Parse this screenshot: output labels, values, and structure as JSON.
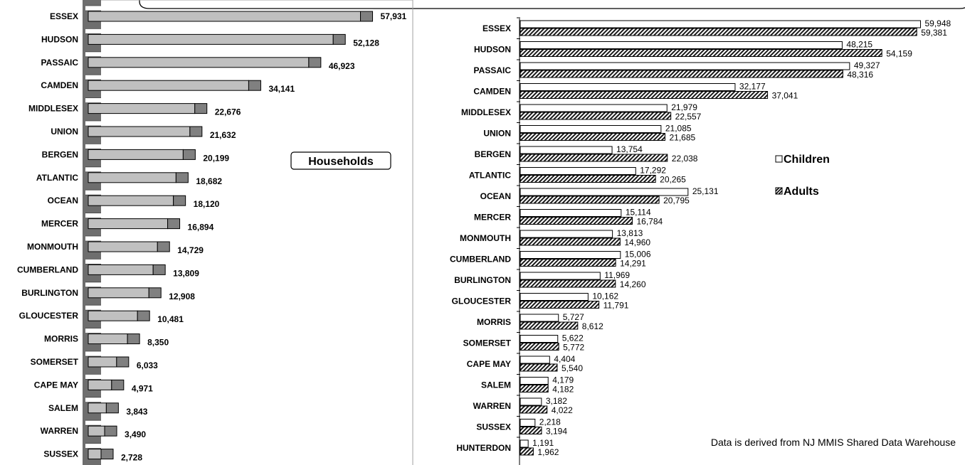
{
  "chart_data": [
    {
      "type": "bar",
      "orientation": "horizontal",
      "title_box": "Households",
      "categories": [
        "ESSEX",
        "HUDSON",
        "PASSAIC",
        "CAMDEN",
        "MIDDLESEX",
        "UNION",
        "BERGEN",
        "ATLANTIC",
        "OCEAN",
        "MERCER",
        "MONMOUTH",
        "CUMBERLAND",
        "BURLINGTON",
        "GLOUCESTER",
        "MORRIS",
        "SOMERSET",
        "CAPE MAY",
        "SALEM",
        "WARREN",
        "SUSSEX"
      ],
      "values": [
        57931,
        52128,
        46923,
        34141,
        22676,
        21632,
        20199,
        18682,
        18120,
        16894,
        14729,
        13809,
        12908,
        10481,
        8350,
        6033,
        4971,
        3843,
        3490,
        2728
      ],
      "value_labels": [
        "57,931",
        "52,128",
        "46,923",
        "34,141",
        "22,676",
        "21,632",
        "20,199",
        "18,682",
        "18,120",
        "16,894",
        "14,729",
        "13,809",
        "12,908",
        "10,481",
        "8,350",
        "6,033",
        "4,971",
        "3,843",
        "3,490",
        "2,728"
      ],
      "xlim": [
        0,
        63000
      ],
      "colors": {
        "bar": "#c0c0c0",
        "cap": "#808080",
        "wall": "#6e6e6e"
      }
    },
    {
      "type": "bar",
      "orientation": "horizontal",
      "categories": [
        "ESSEX",
        "HUDSON",
        "PASSAIC",
        "CAMDEN",
        "MIDDLESEX",
        "UNION",
        "BERGEN",
        "ATLANTIC",
        "OCEAN",
        "MERCER",
        "MONMOUTH",
        "CUMBERLAND",
        "BURLINGTON",
        "GLOUCESTER",
        "MORRIS",
        "SOMERSET",
        "CAPE MAY",
        "SALEM",
        "WARREN",
        "SUSSEX",
        "HUNTERDON"
      ],
      "series": [
        {
          "name": "Children",
          "values": [
            59948,
            48215,
            49327,
            32177,
            21979,
            21085,
            13754,
            17292,
            25131,
            15114,
            13813,
            15006,
            11969,
            10162,
            5727,
            5622,
            4404,
            4179,
            3182,
            2218,
            1191
          ],
          "value_labels": [
            "59,948",
            "48,215",
            "49,327",
            "32,177",
            "21,979",
            "21,085",
            "13,754",
            "17,292",
            "25,131",
            "15,114",
            "13,813",
            "15,006",
            "11,969",
            "10,162",
            "5,727",
            "5,622",
            "4,404",
            "4,179",
            "3,182",
            "2,218",
            "1,191"
          ]
        },
        {
          "name": "Adults",
          "values": [
            59381,
            54159,
            48316,
            37041,
            22557,
            21685,
            22038,
            20265,
            20795,
            16784,
            14960,
            14291,
            14260,
            11791,
            8612,
            5772,
            5540,
            4182,
            4022,
            3194,
            1962
          ],
          "value_labels": [
            "59,381",
            "54,159",
            "48,316",
            "37,041",
            "22,557",
            "21,685",
            "22,038",
            "20,265",
            "20,795",
            "16,784",
            "14,960",
            "14,291",
            "14,260",
            "11,791",
            "8,612",
            "5,772",
            "5,540",
            "4,182",
            "4,022",
            "3,194",
            "1,962"
          ]
        }
      ],
      "legend_position": "right",
      "xlim": [
        0,
        60000
      ],
      "note": "Data is derived from NJ MMIS Shared Data Warehouse"
    }
  ]
}
